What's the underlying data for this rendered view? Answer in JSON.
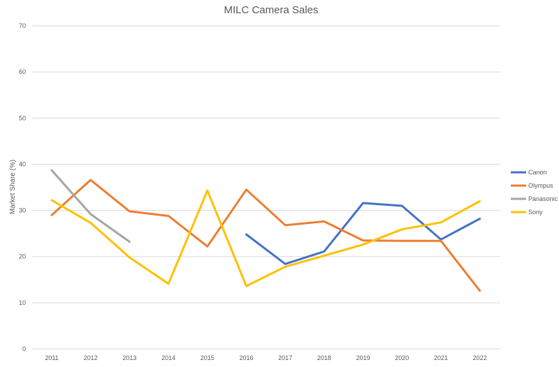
{
  "chart_data": {
    "type": "line",
    "title": "MILC Camera Sales",
    "xlabel": "",
    "ylabel": "Market Share (%)",
    "ylim": [
      0,
      70
    ],
    "yticks": [
      0,
      10,
      20,
      30,
      40,
      50,
      60,
      70
    ],
    "grid": true,
    "legend_position": "right",
    "categories": [
      "2011",
      "2012",
      "2013",
      "2014",
      "2015",
      "2016",
      "2017",
      "2018",
      "2019",
      "2020",
      "2021",
      "2022"
    ],
    "series": [
      {
        "name": "Canon",
        "color": "#4472c4",
        "values": [
          null,
          null,
          null,
          null,
          null,
          24.8,
          18.4,
          21.1,
          31.6,
          31.0,
          23.7,
          28.2
        ]
      },
      {
        "name": "Olympus",
        "color": "#ed7d31",
        "values": [
          29.0,
          36.6,
          29.8,
          28.8,
          22.2,
          34.5,
          26.8,
          27.6,
          23.5,
          23.4,
          23.4,
          12.6
        ]
      },
      {
        "name": "Panasonic",
        "color": "#a5a5a5",
        "values": [
          38.7,
          29.2,
          23.2,
          null,
          null,
          null,
          null,
          null,
          null,
          null,
          null,
          null
        ]
      },
      {
        "name": "Sony",
        "color": "#ffc000",
        "values": [
          32.2,
          27.3,
          19.8,
          14.1,
          34.3,
          13.6,
          17.8,
          20.2,
          22.6,
          25.9,
          27.4,
          32.0
        ]
      }
    ]
  }
}
